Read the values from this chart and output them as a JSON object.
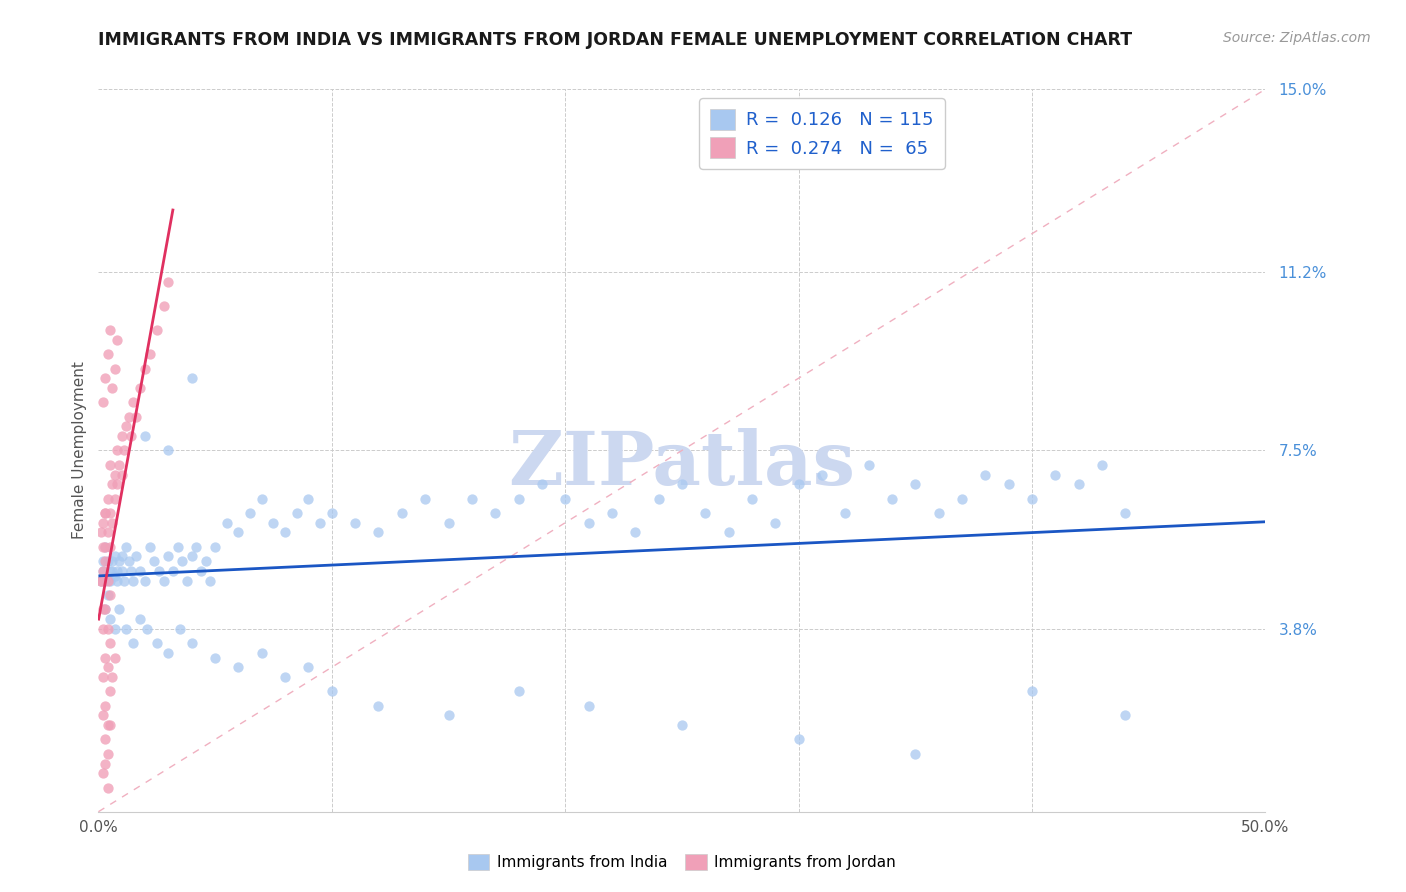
{
  "title": "IMMIGRANTS FROM INDIA VS IMMIGRANTS FROM JORDAN FEMALE UNEMPLOYMENT CORRELATION CHART",
  "source": "Source: ZipAtlas.com",
  "ylabel": "Female Unemployment",
  "xlim": [
    0.0,
    0.5
  ],
  "ylim": [
    0.0,
    0.15
  ],
  "india_color": "#a8c8f0",
  "jordan_color": "#f0a0b8",
  "india_trend_color": "#1a56c4",
  "jordan_trend_color": "#e03060",
  "right_tick_color": "#4a90d9",
  "legend_text_color": "#2060cc",
  "grid_color": "#cccccc",
  "diag_color": "#f0b0c0",
  "title_color": "#1a1a1a",
  "watermark": "ZIPatlas",
  "watermark_color": "#ccd8f0",
  "india_x": [
    0.001,
    0.002,
    0.002,
    0.003,
    0.003,
    0.004,
    0.004,
    0.005,
    0.005,
    0.006,
    0.006,
    0.007,
    0.007,
    0.008,
    0.008,
    0.009,
    0.01,
    0.01,
    0.011,
    0.012,
    0.013,
    0.014,
    0.015,
    0.016,
    0.018,
    0.02,
    0.022,
    0.024,
    0.026,
    0.028,
    0.03,
    0.032,
    0.034,
    0.036,
    0.038,
    0.04,
    0.042,
    0.044,
    0.046,
    0.048,
    0.05,
    0.055,
    0.06,
    0.065,
    0.07,
    0.075,
    0.08,
    0.085,
    0.09,
    0.095,
    0.1,
    0.11,
    0.12,
    0.13,
    0.14,
    0.15,
    0.16,
    0.17,
    0.18,
    0.19,
    0.2,
    0.21,
    0.22,
    0.23,
    0.24,
    0.25,
    0.26,
    0.27,
    0.28,
    0.29,
    0.3,
    0.31,
    0.32,
    0.33,
    0.34,
    0.35,
    0.36,
    0.37,
    0.38,
    0.39,
    0.4,
    0.41,
    0.42,
    0.43,
    0.44,
    0.003,
    0.005,
    0.007,
    0.009,
    0.012,
    0.015,
    0.018,
    0.021,
    0.025,
    0.03,
    0.035,
    0.04,
    0.05,
    0.06,
    0.07,
    0.08,
    0.09,
    0.1,
    0.12,
    0.15,
    0.18,
    0.21,
    0.25,
    0.3,
    0.35,
    0.4,
    0.44,
    0.02,
    0.03,
    0.04
  ],
  "india_y": [
    0.048,
    0.05,
    0.052,
    0.048,
    0.055,
    0.045,
    0.052,
    0.05,
    0.048,
    0.05,
    0.052,
    0.049,
    0.053,
    0.05,
    0.048,
    0.052,
    0.05,
    0.053,
    0.048,
    0.055,
    0.052,
    0.05,
    0.048,
    0.053,
    0.05,
    0.048,
    0.055,
    0.052,
    0.05,
    0.048,
    0.053,
    0.05,
    0.055,
    0.052,
    0.048,
    0.053,
    0.055,
    0.05,
    0.052,
    0.048,
    0.055,
    0.06,
    0.058,
    0.062,
    0.065,
    0.06,
    0.058,
    0.062,
    0.065,
    0.06,
    0.062,
    0.06,
    0.058,
    0.062,
    0.065,
    0.06,
    0.065,
    0.062,
    0.065,
    0.068,
    0.065,
    0.06,
    0.062,
    0.058,
    0.065,
    0.068,
    0.062,
    0.058,
    0.065,
    0.06,
    0.068,
    0.07,
    0.062,
    0.072,
    0.065,
    0.068,
    0.062,
    0.065,
    0.07,
    0.068,
    0.065,
    0.07,
    0.068,
    0.072,
    0.062,
    0.042,
    0.04,
    0.038,
    0.042,
    0.038,
    0.035,
    0.04,
    0.038,
    0.035,
    0.033,
    0.038,
    0.035,
    0.032,
    0.03,
    0.033,
    0.028,
    0.03,
    0.025,
    0.022,
    0.02,
    0.025,
    0.022,
    0.018,
    0.015,
    0.012,
    0.025,
    0.02,
    0.078,
    0.075,
    0.09
  ],
  "jordan_x": [
    0.001,
    0.002,
    0.002,
    0.003,
    0.003,
    0.003,
    0.004,
    0.004,
    0.004,
    0.005,
    0.005,
    0.005,
    0.006,
    0.006,
    0.007,
    0.007,
    0.008,
    0.008,
    0.009,
    0.01,
    0.01,
    0.011,
    0.012,
    0.013,
    0.014,
    0.015,
    0.016,
    0.018,
    0.02,
    0.022,
    0.025,
    0.028,
    0.03,
    0.002,
    0.003,
    0.004,
    0.005,
    0.006,
    0.007,
    0.008,
    0.002,
    0.003,
    0.004,
    0.005,
    0.002,
    0.003,
    0.004,
    0.005,
    0.006,
    0.007,
    0.002,
    0.003,
    0.004,
    0.005,
    0.003,
    0.004,
    0.005,
    0.002,
    0.003,
    0.004,
    0.001,
    0.002,
    0.003,
    0.001,
    0.002
  ],
  "jordan_y": [
    0.048,
    0.05,
    0.06,
    0.055,
    0.062,
    0.052,
    0.058,
    0.065,
    0.048,
    0.062,
    0.055,
    0.072,
    0.06,
    0.068,
    0.065,
    0.07,
    0.068,
    0.075,
    0.072,
    0.07,
    0.078,
    0.075,
    0.08,
    0.082,
    0.078,
    0.085,
    0.082,
    0.088,
    0.092,
    0.095,
    0.1,
    0.105,
    0.11,
    0.085,
    0.09,
    0.095,
    0.1,
    0.088,
    0.092,
    0.098,
    0.038,
    0.042,
    0.038,
    0.045,
    0.028,
    0.032,
    0.03,
    0.035,
    0.028,
    0.032,
    0.02,
    0.022,
    0.018,
    0.025,
    0.015,
    0.012,
    0.018,
    0.008,
    0.01,
    0.005,
    0.048,
    0.055,
    0.062,
    0.058,
    0.042
  ]
}
